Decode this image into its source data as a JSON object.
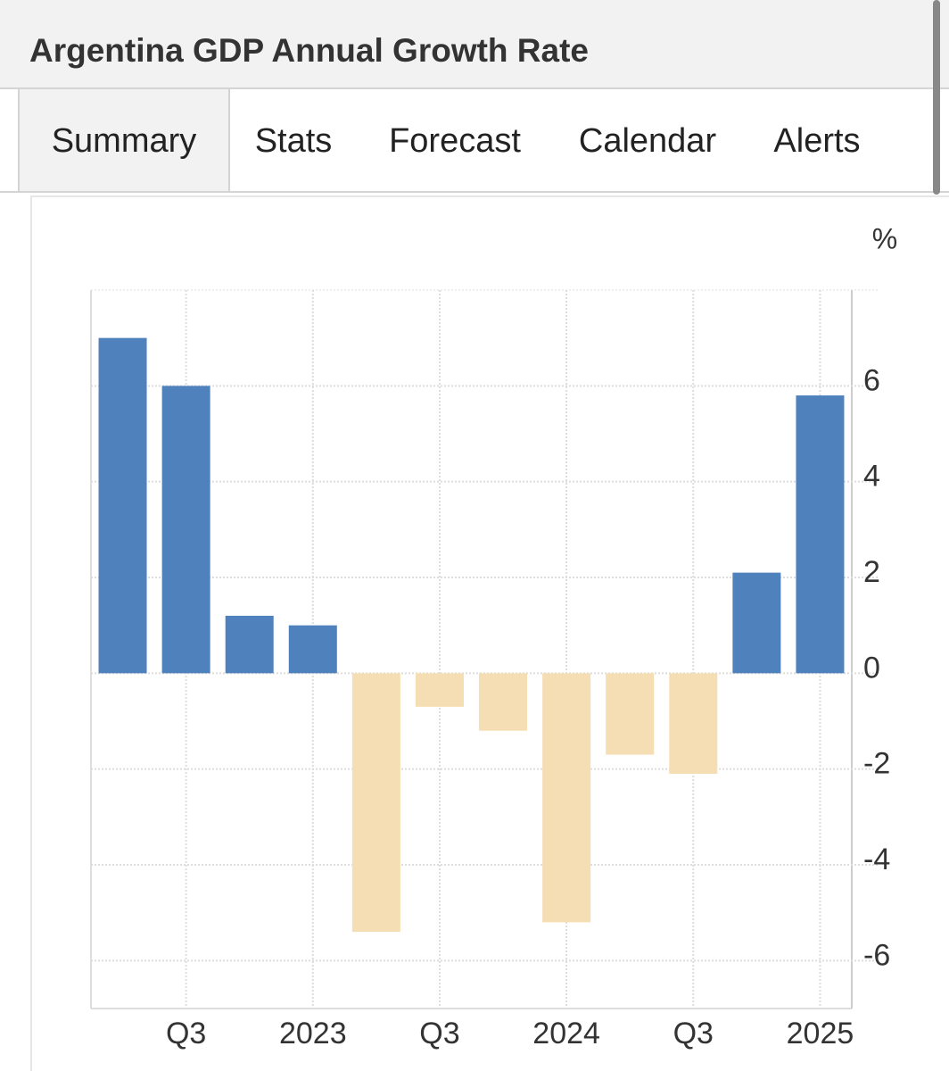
{
  "header": {
    "title": "Argentina GDP Annual Growth Rate"
  },
  "tabs": [
    "Summary",
    "Stats",
    "Forecast",
    "Calendar",
    "Alerts"
  ],
  "chart_data": {
    "type": "bar",
    "unit_label": "%",
    "categories": [
      null,
      "Q3",
      null,
      "2023",
      null,
      "Q3",
      null,
      "2024",
      null,
      "Q3",
      null,
      "2025"
    ],
    "values": [
      7.0,
      6.0,
      1.2,
      1.0,
      -5.4,
      -0.7,
      -1.2,
      -5.2,
      -1.7,
      -2.1,
      2.1,
      5.8
    ],
    "positive_color": "#4f81bd",
    "negative_color": "#f5deb3",
    "ylim": [
      -7,
      8
    ],
    "yticks": [
      -6,
      -4,
      -2,
      0,
      2,
      4,
      6
    ],
    "grid": true
  }
}
